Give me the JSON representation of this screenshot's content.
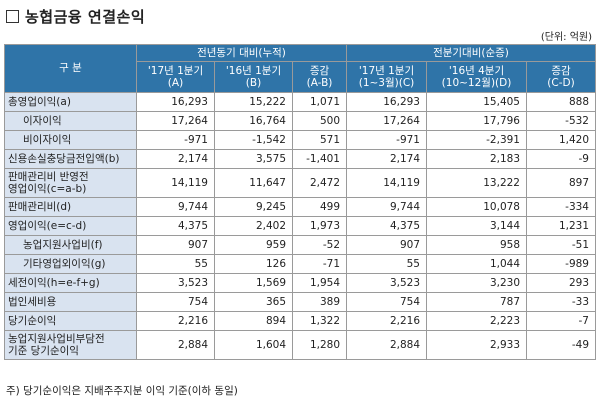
{
  "title": "농협금융 연결손익",
  "unit": "(단위: 억원)",
  "header": {
    "col_gubun": "구 분",
    "group1": "전년동기 대비(누적)",
    "group2": "전분기대비(순증)",
    "sub": [
      [
        "'17년 1분기 (A)"
      ],
      [
        "'16년 1분기 (B)"
      ],
      [
        "증감",
        "(A-B)"
      ],
      [
        "'17년 1분기",
        "(1~3월)(C)"
      ],
      [
        "'16년 4분기",
        "(10~12월)(D)"
      ],
      [
        "증감",
        "(C-D)"
      ]
    ]
  },
  "rows": [
    {
      "label": [
        "총영업이익(a)"
      ],
      "indent": false,
      "values": [
        "16,293",
        "15,222",
        "1,071",
        "16,293",
        "15,405",
        "888"
      ]
    },
    {
      "label": [
        "이자이익"
      ],
      "indent": true,
      "values": [
        "17,264",
        "16,764",
        "500",
        "17,264",
        "17,796",
        "-532"
      ]
    },
    {
      "label": [
        "비이자이익"
      ],
      "indent": true,
      "values": [
        "-971",
        "-1,542",
        "571",
        "-971",
        "-2,391",
        "1,420"
      ]
    },
    {
      "label": [
        "신용손실충당금전입액(b)"
      ],
      "indent": false,
      "values": [
        "2,174",
        "3,575",
        "-1,401",
        "2,174",
        "2,183",
        "-9"
      ]
    },
    {
      "label": [
        "판매관리비 반영전",
        "영업이익(c=a-b)"
      ],
      "indent": false,
      "values": [
        "14,119",
        "11,647",
        "2,472",
        "14,119",
        "13,222",
        "897"
      ]
    },
    {
      "label": [
        "판매관리비(d)"
      ],
      "indent": false,
      "values": [
        "9,744",
        "9,245",
        "499",
        "9,744",
        "10,078",
        "-334"
      ]
    },
    {
      "label": [
        "영업이익(e=c-d)"
      ],
      "indent": false,
      "values": [
        "4,375",
        "2,402",
        "1,973",
        "4,375",
        "3,144",
        "1,231"
      ]
    },
    {
      "label": [
        "농업지원사업비(f)"
      ],
      "indent": true,
      "values": [
        "907",
        "959",
        "-52",
        "907",
        "958",
        "-51"
      ]
    },
    {
      "label": [
        "기타영업외이익(g)"
      ],
      "indent": true,
      "values": [
        "55",
        "126",
        "-71",
        "55",
        "1,044",
        "-989"
      ]
    },
    {
      "label": [
        "세전이익(h=e-f+g)"
      ],
      "indent": false,
      "values": [
        "3,523",
        "1,569",
        "1,954",
        "3,523",
        "3,230",
        "293"
      ]
    },
    {
      "label": [
        "법인세비용"
      ],
      "indent": false,
      "values": [
        "754",
        "365",
        "389",
        "754",
        "787",
        "-33"
      ]
    },
    {
      "label": [
        "당기순이익"
      ],
      "indent": false,
      "values": [
        "2,216",
        "894",
        "1,322",
        "2,216",
        "2,223",
        "-7"
      ]
    },
    {
      "label": [
        "농업지원사업비부담전",
        "기준 당기순이익"
      ],
      "indent": false,
      "values": [
        "2,884",
        "1,604",
        "1,280",
        "2,884",
        "2,933",
        "-49"
      ]
    }
  ],
  "footnote": "주) 당기순이익은 지배주주지분 이익 기준(이하 동일)"
}
